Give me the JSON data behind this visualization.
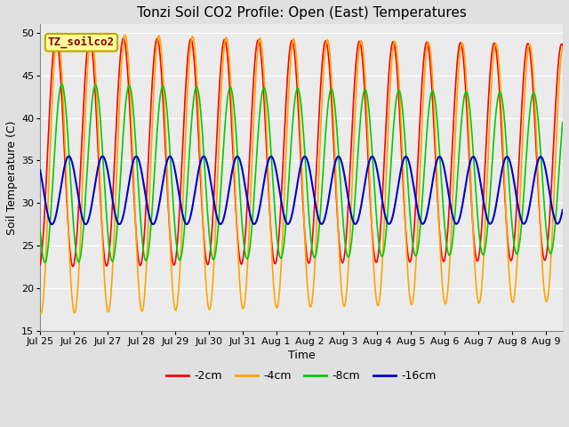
{
  "title": "Tonzi Soil CO2 Profile: Open (East) Temperatures",
  "xlabel": "Time",
  "ylabel": "Soil Temperature (C)",
  "ylim": [
    15,
    51
  ],
  "yticks": [
    15,
    20,
    25,
    30,
    35,
    40,
    45,
    50
  ],
  "series": {
    "-2cm": {
      "color": "#FF0000",
      "lw": 1.2
    },
    "-4cm": {
      "color": "#FFA500",
      "lw": 1.2
    },
    "-8cm": {
      "color": "#00CC00",
      "lw": 1.2
    },
    "-16cm": {
      "color": "#0000CC",
      "lw": 1.5
    }
  },
  "xtick_labels": [
    "Jul 25",
    "Jul 26",
    "Jul 27",
    "Jul 28",
    "Jul 29",
    "Jul 30",
    "Jul 31",
    "Aug 1",
    "Aug 2",
    "Aug 3",
    "Aug 4",
    "Aug 5",
    "Aug 6",
    "Aug 7",
    "Aug 8",
    "Aug 9"
  ],
  "legend_label": "TZ_soilco2",
  "legend_color": "#FFFF99",
  "legend_border_color": "#BBAA00",
  "bg_color": "#E0E0E0",
  "plot_bg_color": "#EBEBEB",
  "grid_color": "#FFFFFF",
  "title_fontsize": 11,
  "axis_fontsize": 9,
  "tick_fontsize": 8,
  "legend_fontsize": 9,
  "param_2cm": {
    "mean": 36.0,
    "amp": 13.5,
    "phase": 0.22,
    "decay": 0.004
  },
  "param_4cm": {
    "mean": 33.5,
    "amp": 16.5,
    "phase": 0.27,
    "decay": 0.006
  },
  "param_8cm": {
    "mean": 33.5,
    "amp": 10.5,
    "phase": 0.39,
    "decay": 0.007
  },
  "param_16cm": {
    "mean": 31.5,
    "amp": 4.0,
    "phase": 0.6,
    "decay": 0.001
  }
}
